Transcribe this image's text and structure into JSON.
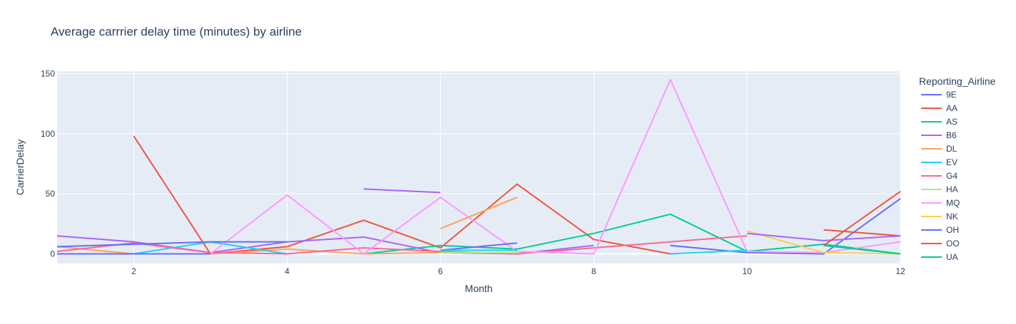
{
  "chart_data": {
    "type": "line",
    "title": "Average carrrier delay time (minutes) by airline",
    "xlabel": "Month",
    "ylabel": "CarrierDelay",
    "xlim": [
      1,
      12
    ],
    "ylim": [
      -8,
      152
    ],
    "x_ticks": [
      2,
      4,
      6,
      8,
      10,
      12
    ],
    "y_ticks": [
      0,
      50,
      100,
      150
    ],
    "grid": true,
    "legend_title": "Reporting_Airline",
    "legend_position": "right",
    "series": [
      {
        "name": "9E",
        "color": "#636efa",
        "points": [
          [
            9,
            7
          ],
          [
            10,
            1
          ],
          [
            11,
            0
          ],
          [
            12,
            46
          ]
        ]
      },
      {
        "name": "AA",
        "color": "#EF553B",
        "points": [
          [
            2,
            98
          ],
          [
            3,
            0
          ],
          [
            4,
            6
          ],
          [
            5,
            28
          ],
          [
            6,
            5
          ],
          [
            7,
            58
          ],
          [
            8,
            12
          ],
          [
            9,
            0
          ]
        ]
      },
      {
        "name": "AS",
        "color": "#00cc96",
        "points": [
          [
            5,
            0
          ],
          [
            6,
            7
          ],
          [
            7,
            4
          ],
          [
            8,
            17
          ],
          [
            9,
            33
          ],
          [
            10,
            2
          ],
          [
            11,
            8
          ],
          [
            12,
            0
          ]
        ]
      },
      {
        "name": "B6",
        "color": "#ab63fa",
        "points": [
          [
            1,
            15
          ],
          [
            2,
            10
          ],
          [
            3,
            1
          ],
          [
            4,
            10
          ],
          [
            5,
            14
          ],
          [
            6,
            1
          ],
          [
            7,
            0
          ],
          [
            8,
            7
          ]
        ]
      },
      {
        "name": "DL",
        "color": "#FFA15A",
        "points": [
          [
            1,
            6
          ],
          [
            2,
            0
          ],
          [
            3,
            0
          ],
          [
            4,
            4
          ],
          [
            5,
            0
          ],
          [
            6,
            1
          ],
          [
            7,
            1
          ]
        ]
      },
      {
        "name": "EV",
        "color": "#19d3f3",
        "points": [
          [
            1,
            0
          ],
          [
            2,
            0
          ],
          [
            3,
            10
          ],
          [
            4,
            0
          ]
        ]
      },
      {
        "name": "G4",
        "color": "#FF6692",
        "points": [
          [
            1,
            2
          ],
          [
            2,
            9
          ],
          [
            3,
            1
          ],
          [
            4,
            0
          ],
          [
            5,
            5
          ],
          [
            6,
            2
          ],
          [
            7,
            0
          ],
          [
            8,
            5
          ],
          [
            9,
            10
          ],
          [
            10,
            15
          ]
        ]
      },
      {
        "name": "HA",
        "color": "#B6E880",
        "points": [
          [
            6,
            1
          ],
          [
            7,
            1
          ]
        ]
      },
      {
        "name": "MQ",
        "color": "#FF97FF",
        "points": [
          [
            3,
            0
          ],
          [
            4,
            49
          ],
          [
            5,
            0
          ],
          [
            6,
            47
          ],
          [
            7,
            2
          ],
          [
            8,
            0
          ],
          [
            9,
            145
          ],
          [
            10,
            2
          ],
          [
            11,
            1
          ],
          [
            12,
            10
          ]
        ]
      },
      {
        "name": "NK",
        "color": "#FECB52",
        "points": [
          [
            10,
            19
          ],
          [
            11,
            1
          ],
          [
            12,
            0
          ]
        ]
      },
      {
        "name": "OH",
        "color": "#636efa",
        "points": [
          [
            1,
            6
          ],
          [
            2,
            8
          ],
          [
            3,
            10
          ],
          [
            4,
            10
          ]
        ]
      },
      {
        "name": "OO",
        "color": "#EF553B",
        "points": [
          [
            11,
            20
          ],
          [
            12,
            15
          ]
        ]
      },
      {
        "name": "UA",
        "color": "#00cc96",
        "points": [
          [
            11,
            7
          ],
          [
            12,
            0
          ]
        ]
      }
    ],
    "extra_segments": [
      {
        "color": "#ab63fa",
        "points": [
          [
            5,
            54
          ],
          [
            6,
            51
          ]
        ]
      },
      {
        "color": "#FFA15A",
        "points": [
          [
            6,
            21
          ],
          [
            7,
            47
          ]
        ]
      },
      {
        "color": "#636efa",
        "points": [
          [
            6,
            3
          ],
          [
            7,
            9
          ]
        ]
      },
      {
        "color": "#19d3f3",
        "points": [
          [
            6,
            3
          ],
          [
            7,
            3
          ]
        ]
      },
      {
        "color": "#19d3f3",
        "points": [
          [
            9,
            0
          ],
          [
            10,
            3
          ]
        ]
      },
      {
        "color": "#ab63fa",
        "points": [
          [
            10,
            17
          ],
          [
            11,
            11
          ],
          [
            12,
            15
          ]
        ]
      },
      {
        "color": "#EF553B",
        "points": [
          [
            11,
            7
          ],
          [
            12,
            52
          ]
        ]
      },
      {
        "color": "#636efa",
        "points": [
          [
            1,
            0
          ],
          [
            2,
            0
          ],
          [
            3,
            0
          ]
        ]
      }
    ]
  }
}
